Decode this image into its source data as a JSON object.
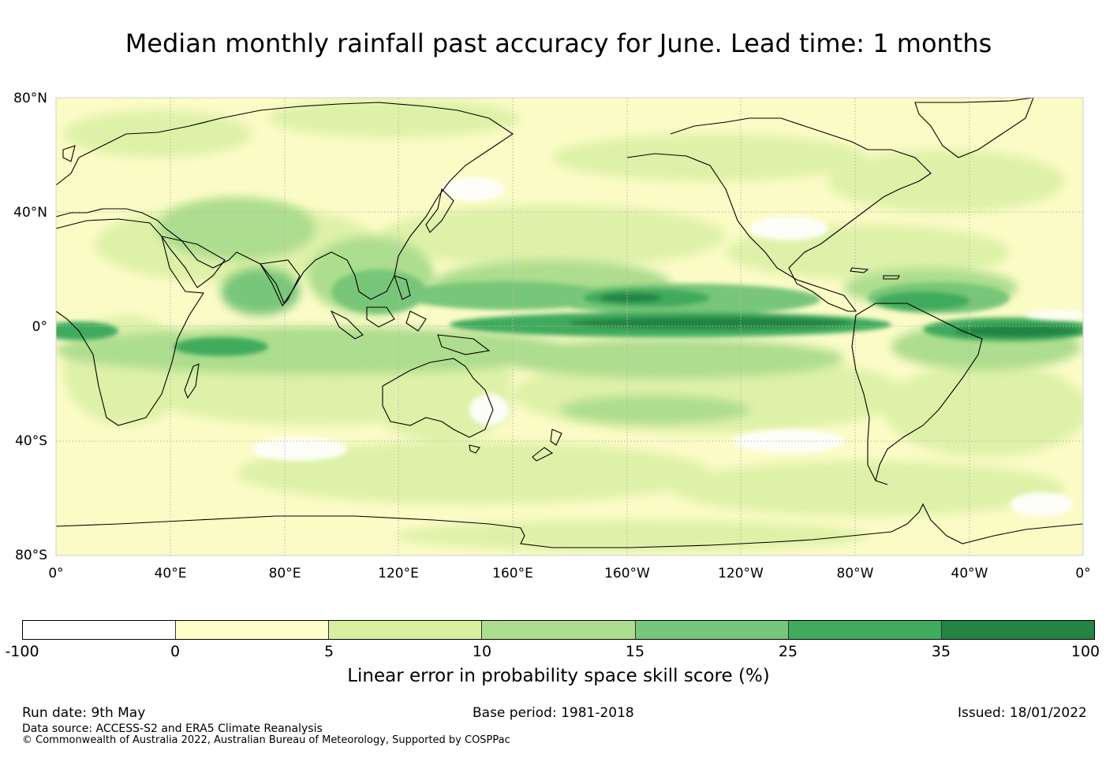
{
  "title": "Median monthly rainfall past accuracy for June. Lead time: 1 months",
  "map": {
    "lat_labels": [
      "80°N",
      "40°N",
      "0°",
      "40°S",
      "80°S"
    ],
    "lon_labels": [
      "0°",
      "40°E",
      "80°E",
      "120°E",
      "160°E",
      "160°W",
      "120°W",
      "80°W",
      "40°W",
      "0°"
    ],
    "colors": {
      "ocean_base": "#fdfdd2",
      "coast": "#000000",
      "grid": "#bdbdbd"
    }
  },
  "colorbar": {
    "label": "Linear error in probability space skill score (%)",
    "ticks": [
      "-100",
      "0",
      "5",
      "10",
      "15",
      "25",
      "35",
      "100"
    ],
    "colors": [
      "#ffffff",
      "#ffffcc",
      "#d9f0a3",
      "#addd8e",
      "#78c679",
      "#41ab5d",
      "#238443"
    ]
  },
  "footer": {
    "run_date": "Run date: 9th May",
    "base_period": "Base period: 1981-2018",
    "issued": "Issued: 18/01/2022",
    "data_source": "Data source: ACCESS-S2 and ERA5 Climate Reanalysis",
    "copyright": "© Commonwealth of Australia 2022, Australian Bureau of Meteorology, Supported by COSPPac"
  }
}
